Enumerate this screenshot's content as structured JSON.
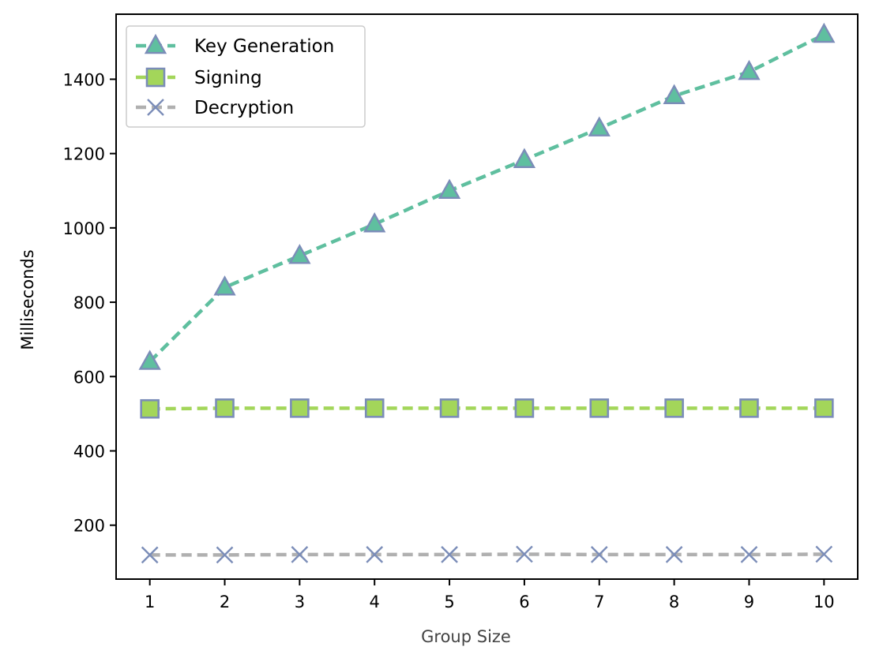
{
  "chart_data": {
    "type": "line",
    "title": "",
    "xlabel": "Group Size",
    "ylabel": "Milliseconds",
    "x": [
      1,
      2,
      3,
      4,
      5,
      6,
      7,
      8,
      9,
      10
    ],
    "xlim": [
      0.55,
      10.45
    ],
    "ylim": [
      55,
      1575
    ],
    "xticks": [
      1,
      2,
      3,
      4,
      5,
      6,
      7,
      8,
      9,
      10
    ],
    "yticks": [
      200,
      400,
      600,
      800,
      1000,
      1200,
      1400
    ],
    "grid": false,
    "legend": {
      "position": "top-left"
    },
    "series": [
      {
        "name": "Key Generation",
        "marker": "triangle",
        "line_color": "#5fbf9f",
        "marker_fill": "#5fbf9f",
        "marker_edge": "#7b8db8",
        "values": [
          640,
          840,
          925,
          1010,
          1100,
          1183,
          1268,
          1355,
          1420,
          1520
        ]
      },
      {
        "name": "Signing",
        "marker": "square",
        "line_color": "#a3d65a",
        "marker_fill": "#a3d65a",
        "marker_edge": "#7b8db8",
        "values": [
          513,
          515,
          515,
          515,
          515,
          515,
          515,
          515,
          515,
          515
        ]
      },
      {
        "name": "Decryption",
        "marker": "x",
        "line_color": "#b0b0b0",
        "marker_fill": "#7b8db8",
        "marker_edge": "#7b8db8",
        "values": [
          120,
          120,
          121,
          121,
          121,
          122,
          121,
          121,
          121,
          122
        ]
      }
    ]
  }
}
